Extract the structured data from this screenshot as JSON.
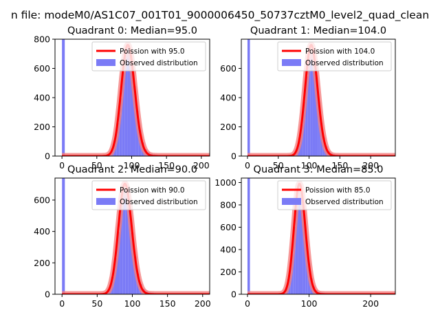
{
  "figure": {
    "suptitle": "n file: modeM0/AS1C07_001T01_9000006450_50737cztM0_level2_quad_clean"
  },
  "colors": {
    "hist": "#7b7bf6",
    "fit_wide": "#f47f7f",
    "fit_line": "#ff0000",
    "axes": "#000000"
  },
  "chart_data": [
    {
      "type": "bar",
      "title": "Quadrant 0: Median=95.0",
      "xlim": [
        -10,
        212
      ],
      "ylim": [
        0,
        800
      ],
      "xticks": [
        0,
        50,
        100,
        150,
        200
      ],
      "yticks": [
        0,
        200,
        400,
        600,
        800
      ],
      "zero_spike": 820,
      "median": 95.0,
      "legend": [
        "Poission with 95.0",
        "Observed distribution"
      ],
      "legend_position": "top-right",
      "grid": false
    },
    {
      "type": "bar",
      "title": "Quadrant 1: Median=104.0",
      "xlim": [
        -10,
        240
      ],
      "ylim": [
        0,
        800
      ],
      "xticks": [
        0,
        50,
        100,
        150,
        200
      ],
      "yticks": [
        0,
        200,
        400,
        600
      ],
      "zero_spike": 820,
      "median": 104.0,
      "legend": [
        "Poission with 104.0",
        "Observed distribution"
      ],
      "legend_position": "top-right",
      "grid": false
    },
    {
      "type": "bar",
      "title": "Quadrant 2: Median=90.0",
      "xlim": [
        -10,
        210
      ],
      "ylim": [
        0,
        740
      ],
      "xticks": [
        0,
        50,
        100,
        150,
        200
      ],
      "yticks": [
        0,
        200,
        400,
        600
      ],
      "zero_spike": 760,
      "median": 90.0,
      "legend": [
        "Poission with 90.0",
        "Observed distribution"
      ],
      "legend_position": "top-right",
      "grid": false
    },
    {
      "type": "bar",
      "title": "Quadrant 3: Median=85.0",
      "xlim": [
        -10,
        240
      ],
      "ylim": [
        0,
        1040
      ],
      "xticks": [
        0,
        100,
        200
      ],
      "yticks": [
        0,
        200,
        400,
        600,
        800,
        1000
      ],
      "zero_spike": 1060,
      "median": 85.0,
      "legend": [
        "Poission with 85.0",
        "Observed distribution"
      ],
      "legend_position": "top-right",
      "grid": false
    }
  ]
}
